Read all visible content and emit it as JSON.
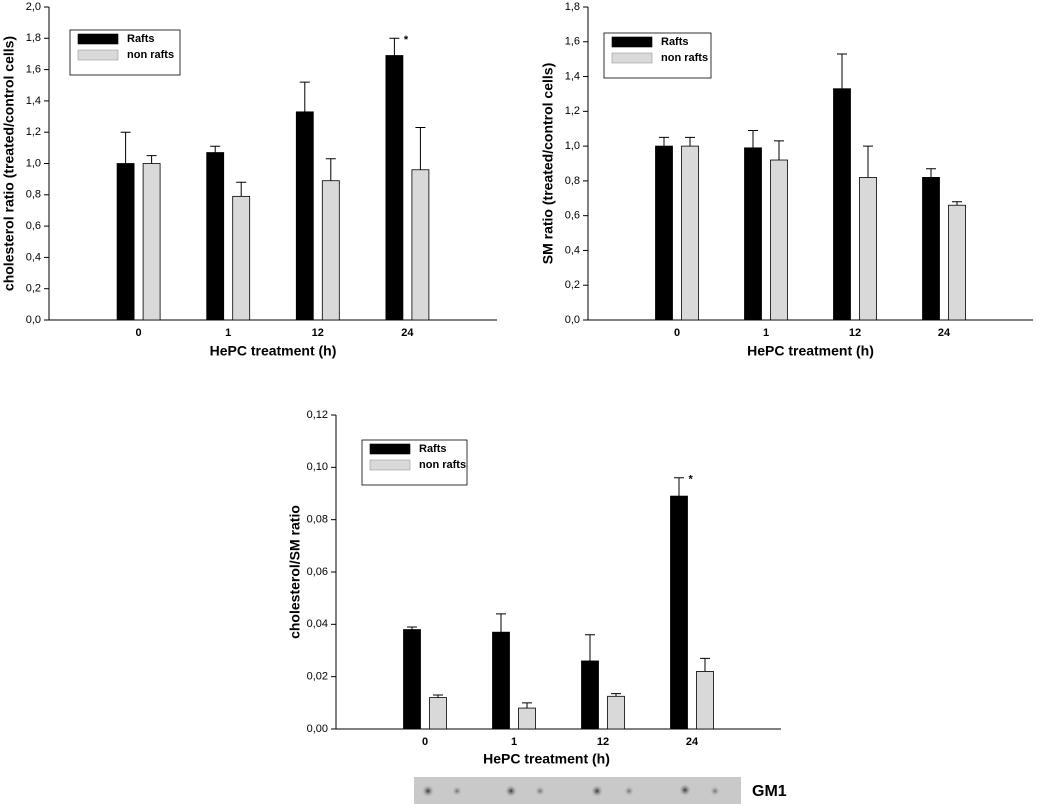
{
  "chart_data": [
    {
      "type": "bar",
      "xlabel": "HePC treatment (h)",
      "ylabel": "cholesterol ratio (treated/control cells)",
      "categories": [
        "0",
        "1",
        "12",
        "24"
      ],
      "series": [
        {
          "name": "Rafts",
          "color": "#000000",
          "values": [
            1.0,
            1.07,
            1.33,
            1.69
          ],
          "errors": [
            0.2,
            0.04,
            0.19,
            0.11
          ]
        },
        {
          "name": "non rafts",
          "color": "#d9d9d9",
          "values": [
            1.0,
            0.79,
            0.89,
            0.96
          ],
          "errors": [
            0.05,
            0.09,
            0.14,
            0.27
          ]
        }
      ],
      "ylim": [
        0,
        2.0
      ],
      "yticks": [
        {
          "value": 0,
          "label": "0,0"
        },
        {
          "value": 0.2,
          "label": "0,2"
        },
        {
          "value": 0.4,
          "label": "0,4"
        },
        {
          "value": 0.6,
          "label": "0,6"
        },
        {
          "value": 0.8,
          "label": "0,8"
        },
        {
          "value": 1.0,
          "label": "1,0"
        },
        {
          "value": 1.2,
          "label": "1,2"
        },
        {
          "value": 1.4,
          "label": "1,4"
        },
        {
          "value": 1.6,
          "label": "1,6"
        },
        {
          "value": 1.8,
          "label": "1,8"
        },
        {
          "value": 2.0,
          "label": "2,0"
        }
      ],
      "annotations": [
        {
          "text": "*",
          "category": "24",
          "series": "Rafts"
        }
      ]
    },
    {
      "type": "bar",
      "xlabel": "HePC treatment (h)",
      "ylabel": "SM ratio (treated/control cells)",
      "categories": [
        "0",
        "1",
        "12",
        "24"
      ],
      "series": [
        {
          "name": "Rafts",
          "color": "#000000",
          "values": [
            1.0,
            0.99,
            1.33,
            0.82
          ],
          "errors": [
            0.05,
            0.1,
            0.2,
            0.05
          ]
        },
        {
          "name": "non rafts",
          "color": "#d9d9d9",
          "values": [
            1.0,
            0.92,
            0.82,
            0.66
          ],
          "errors": [
            0.05,
            0.11,
            0.18,
            0.02
          ]
        }
      ],
      "ylim": [
        0,
        1.8
      ],
      "yticks": [
        {
          "value": 0,
          "label": "0,0"
        },
        {
          "value": 0.2,
          "label": "0,2"
        },
        {
          "value": 0.4,
          "label": "0,4"
        },
        {
          "value": 0.6,
          "label": "0,6"
        },
        {
          "value": 0.8,
          "label": "0,8"
        },
        {
          "value": 1.0,
          "label": "1,0"
        },
        {
          "value": 1.2,
          "label": "1,2"
        },
        {
          "value": 1.4,
          "label": "1,4"
        },
        {
          "value": 1.6,
          "label": "1,6"
        },
        {
          "value": 1.8,
          "label": "1,8"
        }
      ]
    },
    {
      "type": "bar",
      "xlabel": "HePC treatment (h)",
      "ylabel": "cholesterol/SM ratio",
      "categories": [
        "0",
        "1",
        "12",
        "24"
      ],
      "series": [
        {
          "name": "Rafts",
          "color": "#000000",
          "values": [
            0.038,
            0.037,
            0.026,
            0.089
          ],
          "errors": [
            0.001,
            0.007,
            0.01,
            0.007
          ]
        },
        {
          "name": "non rafts",
          "color": "#d9d9d9",
          "values": [
            0.012,
            0.008,
            0.0125,
            0.022
          ],
          "errors": [
            0.001,
            0.002,
            0.001,
            0.005
          ]
        }
      ],
      "ylim": [
        0,
        0.12
      ],
      "yticks": [
        {
          "value": 0,
          "label": "0,00"
        },
        {
          "value": 0.02,
          "label": "0,02"
        },
        {
          "value": 0.04,
          "label": "0,04"
        },
        {
          "value": 0.06,
          "label": "0,06"
        },
        {
          "value": 0.08,
          "label": "0,08"
        },
        {
          "value": 0.1,
          "label": "0,10"
        },
        {
          "value": 0.12,
          "label": "0,12"
        }
      ],
      "annotations": [
        {
          "text": "*",
          "category": "24",
          "series": "Rafts"
        }
      ]
    }
  ],
  "blot": {
    "label": "GM1"
  }
}
